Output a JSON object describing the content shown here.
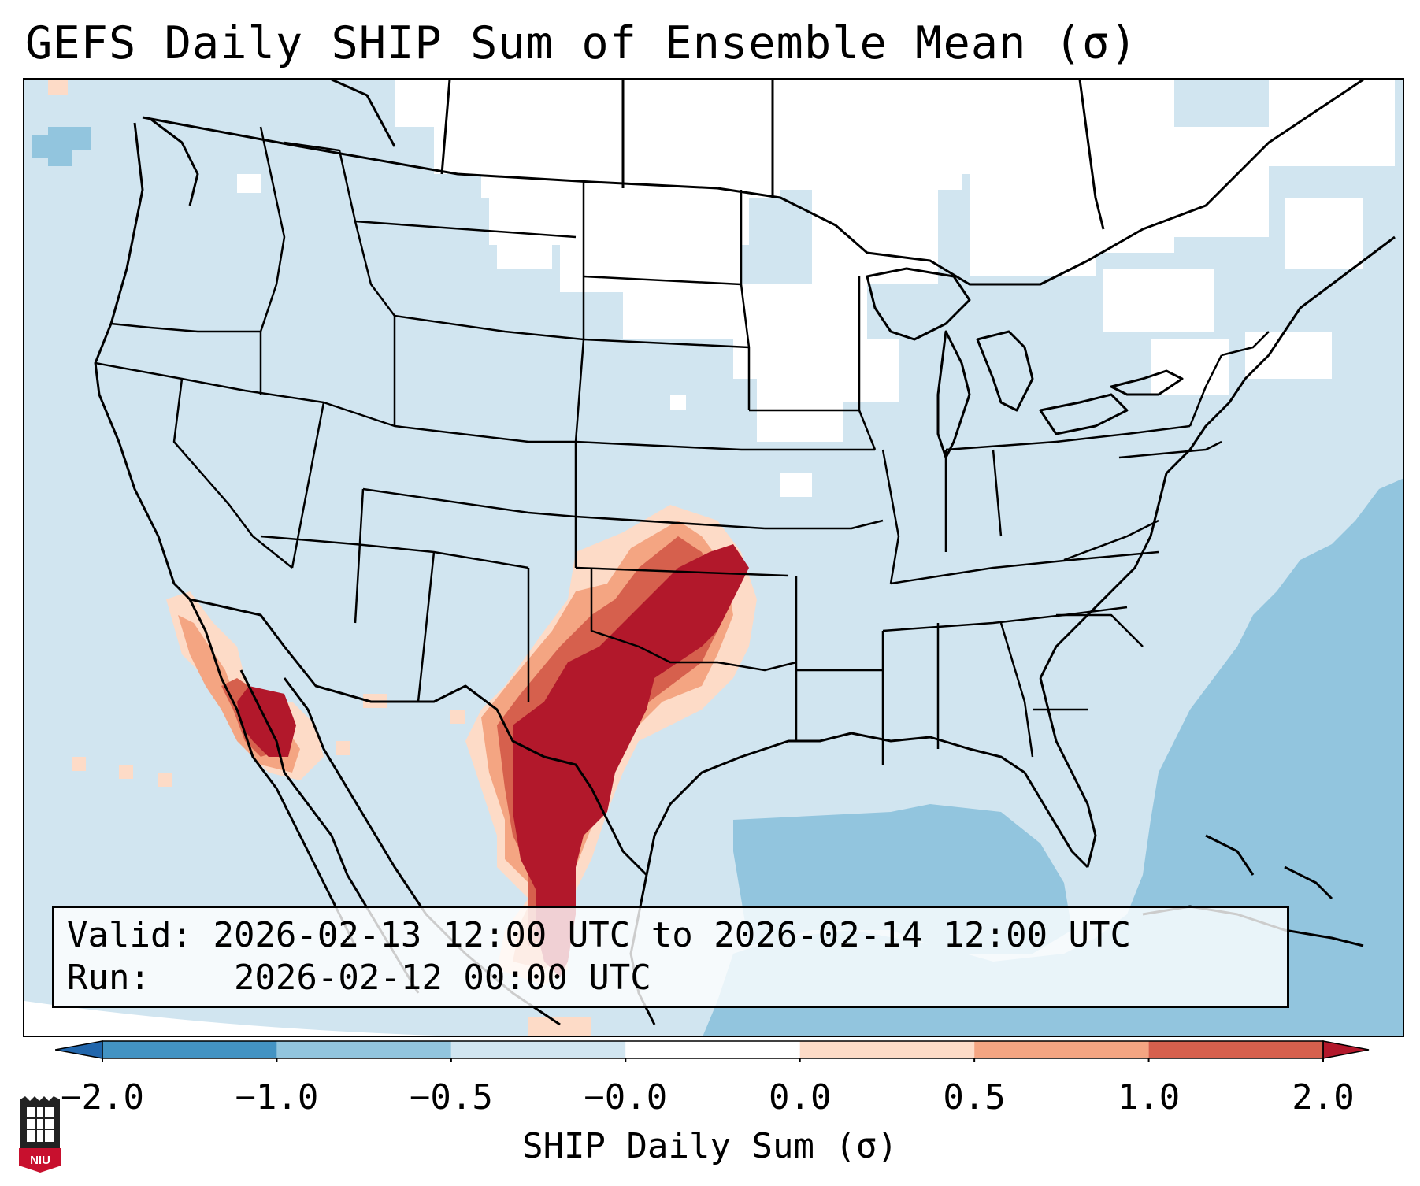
{
  "title": "GEFS Daily SHIP Sum of Ensemble Mean (σ)",
  "info": {
    "valid_label": "Valid:",
    "valid_value": "2026-02-13 12:00 UTC to 2026-02-14 12:00 UTC",
    "run_label": "Run:",
    "run_value": "2026-02-12 00:00 UTC"
  },
  "colorbar": {
    "label": "SHIP Daily Sum (σ)",
    "ticks": [
      "−2.0",
      "−1.0",
      "−0.5",
      "−0.0",
      "0.0",
      "0.5",
      "1.0",
      "2.0"
    ],
    "bins": [
      {
        "range": "below -2.0",
        "color": "#2166ac"
      },
      {
        "range": "-2.0 to -1.0",
        "color": "#4393c3"
      },
      {
        "range": "-1.0 to -0.5",
        "color": "#92c5de"
      },
      {
        "range": "-0.5 to -0.0",
        "color": "#d1e5f0"
      },
      {
        "range": "-0.0 to 0.0",
        "color": "#ffffff"
      },
      {
        "range": "0.0 to 0.5",
        "color": "#fddbc7"
      },
      {
        "range": "0.5 to 1.0",
        "color": "#f4a582"
      },
      {
        "range": "1.0 to 2.0",
        "color": "#d6604d"
      },
      {
        "range": "above 2.0",
        "color": "#b2182b"
      }
    ]
  },
  "logo_text": "NIU",
  "colors": {
    "ocean_neg": "#92c5de",
    "land_base": "#d1e5f0",
    "neutral": "#ffffff",
    "pos_low": "#fddbc7",
    "pos_mid": "#f4a582",
    "pos_high": "#d6604d",
    "pos_max": "#b2182b",
    "logo_red": "#c8102e"
  }
}
